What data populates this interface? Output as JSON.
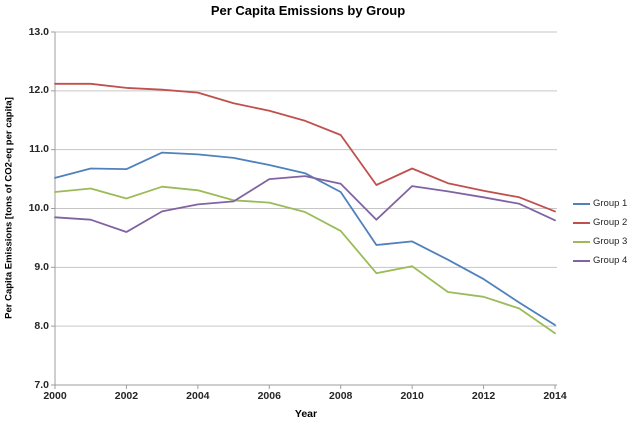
{
  "chart_data": {
    "type": "line",
    "title": "Per Capita Emissions by Group",
    "xlabel": "Year",
    "ylabel": "Per Capita Emissions [tons of CO2-eq per capita]",
    "x": [
      2000,
      2001,
      2002,
      2003,
      2004,
      2005,
      2006,
      2007,
      2008,
      2009,
      2010,
      2011,
      2012,
      2013,
      2014
    ],
    "series": [
      {
        "name": "Group 1",
        "color": "#4F81BD",
        "values": [
          10.52,
          10.68,
          10.67,
          10.95,
          10.92,
          10.86,
          10.74,
          10.6,
          10.28,
          9.38,
          9.44,
          9.13,
          8.8,
          8.4,
          8.02
        ]
      },
      {
        "name": "Group 2",
        "color": "#C0504D",
        "values": [
          12.12,
          12.12,
          12.05,
          12.02,
          11.97,
          11.79,
          11.66,
          11.49,
          11.25,
          10.4,
          10.68,
          10.43,
          10.3,
          10.19,
          9.95
        ]
      },
      {
        "name": "Group 3",
        "color": "#9BBB59",
        "values": [
          10.28,
          10.34,
          10.17,
          10.37,
          10.31,
          10.14,
          10.1,
          9.94,
          9.62,
          8.9,
          9.02,
          8.58,
          8.5,
          8.3,
          7.88
        ]
      },
      {
        "name": "Group 4",
        "color": "#8064A2",
        "values": [
          9.85,
          9.81,
          9.6,
          9.95,
          10.07,
          10.12,
          10.5,
          10.55,
          10.42,
          9.81,
          10.38,
          10.29,
          10.19,
          10.08,
          9.8
        ]
      }
    ],
    "ylim": [
      7.0,
      13.0
    ],
    "ytick_labels": [
      "7.0",
      "8.0",
      "9.0",
      "10.0",
      "11.0",
      "12.0",
      "13.0"
    ],
    "xtick_labels": [
      "2000",
      "2002",
      "2004",
      "2006",
      "2008",
      "2010",
      "2012",
      "2014"
    ],
    "grid": true,
    "legend_position": "right",
    "gridline_color": "#C6C6C6",
    "axis_color": "#9E9E9E"
  }
}
